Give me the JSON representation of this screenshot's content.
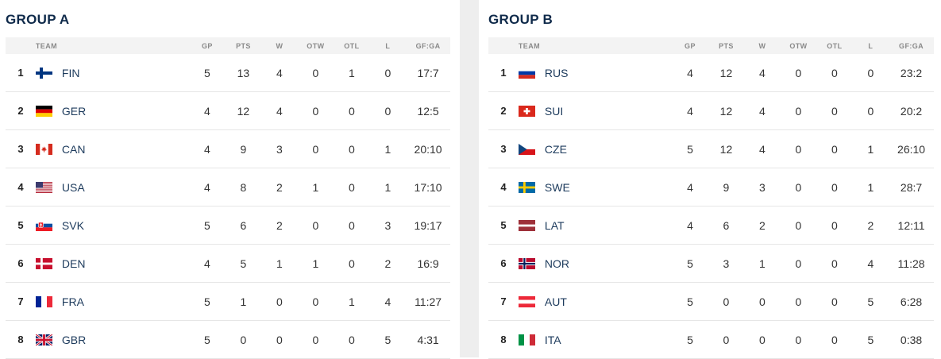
{
  "columns": {
    "team": "TEAM",
    "gp": "GP",
    "pts": "PTS",
    "w": "W",
    "otw": "OTW",
    "otl": "OTL",
    "l": "L",
    "gfga": "GF:GA"
  },
  "groups": [
    {
      "title": "GROUP A",
      "rows": [
        {
          "rank": "1",
          "team": "FIN",
          "flag": "fin-flag-icon",
          "gp": "5",
          "pts": "13",
          "w": "4",
          "otw": "0",
          "otl": "1",
          "l": "0",
          "gfga": "17:7"
        },
        {
          "rank": "2",
          "team": "GER",
          "flag": "ger-flag-icon",
          "gp": "4",
          "pts": "12",
          "w": "4",
          "otw": "0",
          "otl": "0",
          "l": "0",
          "gfga": "12:5"
        },
        {
          "rank": "3",
          "team": "CAN",
          "flag": "can-flag-icon",
          "gp": "4",
          "pts": "9",
          "w": "3",
          "otw": "0",
          "otl": "0",
          "l": "1",
          "gfga": "20:10"
        },
        {
          "rank": "4",
          "team": "USA",
          "flag": "usa-flag-icon",
          "gp": "4",
          "pts": "8",
          "w": "2",
          "otw": "1",
          "otl": "0",
          "l": "1",
          "gfga": "17:10"
        },
        {
          "rank": "5",
          "team": "SVK",
          "flag": "svk-flag-icon",
          "gp": "5",
          "pts": "6",
          "w": "2",
          "otw": "0",
          "otl": "0",
          "l": "3",
          "gfga": "19:17"
        },
        {
          "rank": "6",
          "team": "DEN",
          "flag": "den-flag-icon",
          "gp": "4",
          "pts": "5",
          "w": "1",
          "otw": "1",
          "otl": "0",
          "l": "2",
          "gfga": "16:9"
        },
        {
          "rank": "7",
          "team": "FRA",
          "flag": "fra-flag-icon",
          "gp": "5",
          "pts": "1",
          "w": "0",
          "otw": "0",
          "otl": "1",
          "l": "4",
          "gfga": "11:27"
        },
        {
          "rank": "8",
          "team": "GBR",
          "flag": "gbr-flag-icon",
          "gp": "5",
          "pts": "0",
          "w": "0",
          "otw": "0",
          "otl": "0",
          "l": "5",
          "gfga": "4:31"
        }
      ]
    },
    {
      "title": "GROUP B",
      "rows": [
        {
          "rank": "1",
          "team": "RUS",
          "flag": "rus-flag-icon",
          "gp": "4",
          "pts": "12",
          "w": "4",
          "otw": "0",
          "otl": "0",
          "l": "0",
          "gfga": "23:2"
        },
        {
          "rank": "2",
          "team": "SUI",
          "flag": "sui-flag-icon",
          "gp": "4",
          "pts": "12",
          "w": "4",
          "otw": "0",
          "otl": "0",
          "l": "0",
          "gfga": "20:2"
        },
        {
          "rank": "3",
          "team": "CZE",
          "flag": "cze-flag-icon",
          "gp": "5",
          "pts": "12",
          "w": "4",
          "otw": "0",
          "otl": "0",
          "l": "1",
          "gfga": "26:10"
        },
        {
          "rank": "4",
          "team": "SWE",
          "flag": "swe-flag-icon",
          "gp": "4",
          "pts": "9",
          "w": "3",
          "otw": "0",
          "otl": "0",
          "l": "1",
          "gfga": "28:7"
        },
        {
          "rank": "5",
          "team": "LAT",
          "flag": "lat-flag-icon",
          "gp": "4",
          "pts": "6",
          "w": "2",
          "otw": "0",
          "otl": "0",
          "l": "2",
          "gfga": "12:11"
        },
        {
          "rank": "6",
          "team": "NOR",
          "flag": "nor-flag-icon",
          "gp": "5",
          "pts": "3",
          "w": "1",
          "otw": "0",
          "otl": "0",
          "l": "4",
          "gfga": "11:28"
        },
        {
          "rank": "7",
          "team": "AUT",
          "flag": "aut-flag-icon",
          "gp": "5",
          "pts": "0",
          "w": "0",
          "otw": "0",
          "otl": "0",
          "l": "5",
          "gfga": "6:28"
        },
        {
          "rank": "8",
          "team": "ITA",
          "flag": "ita-flag-icon",
          "gp": "5",
          "pts": "0",
          "w": "0",
          "otw": "0",
          "otl": "0",
          "l": "5",
          "gfga": "0:38"
        }
      ]
    }
  ]
}
